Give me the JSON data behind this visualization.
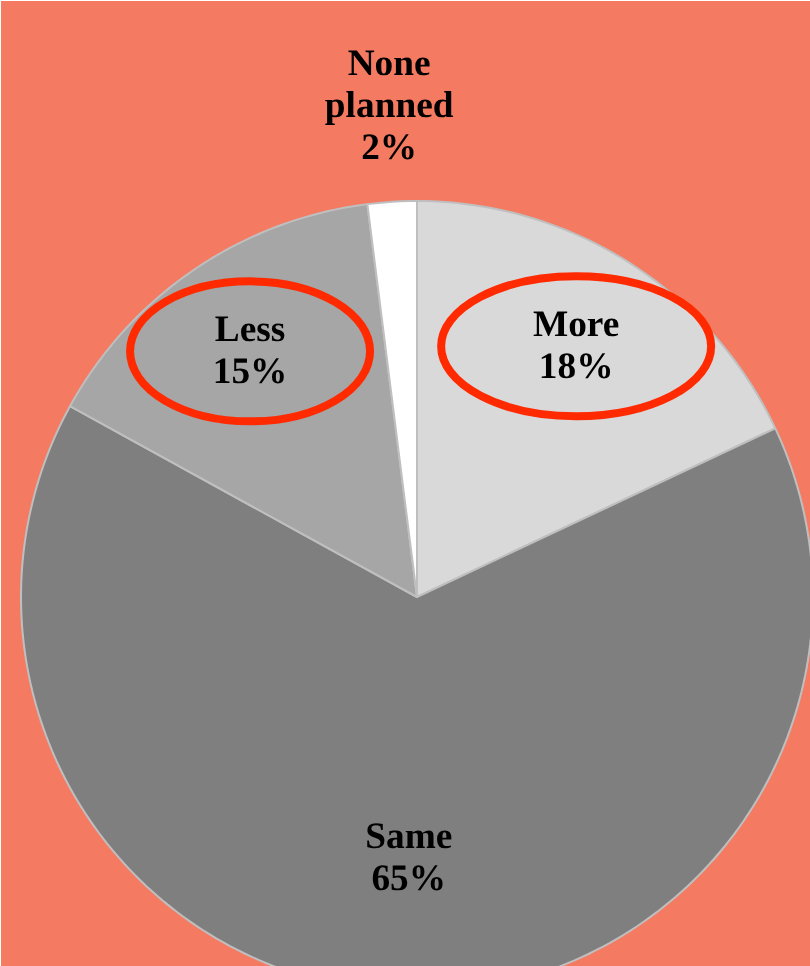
{
  "chart_data": {
    "type": "pie",
    "categories": [
      "More",
      "Same",
      "Less",
      "None planned"
    ],
    "values": [
      18,
      65,
      15,
      2
    ],
    "value_labels": [
      "18%",
      "65%",
      "15%",
      "2%"
    ],
    "colors": [
      "#d9d9d9",
      "#7f7f7f",
      "#a6a6a6",
      "#ffffff"
    ]
  }
}
